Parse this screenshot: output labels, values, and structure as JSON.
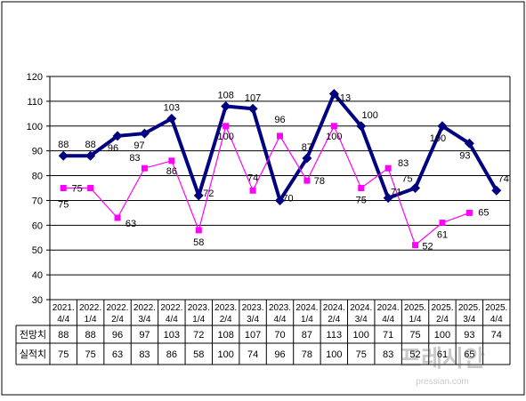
{
  "chart_data": {
    "type": "line",
    "title": "",
    "xlabel": "",
    "ylabel": "",
    "ylim": [
      30,
      120
    ],
    "yticks": [
      30,
      40,
      50,
      60,
      70,
      80,
      90,
      100,
      110,
      120
    ],
    "grid": true,
    "categories": [
      [
        "2021.",
        "4/4"
      ],
      [
        "2022.",
        "1/4"
      ],
      [
        "2022.",
        "2/4"
      ],
      [
        "2022.",
        "3/4"
      ],
      [
        "2022.",
        "4/4"
      ],
      [
        "2023.",
        "1/4"
      ],
      [
        "2023.",
        "2/4"
      ],
      [
        "2023.",
        "3/4"
      ],
      [
        "2023.",
        "4/4"
      ],
      [
        "2024.",
        "1/4"
      ],
      [
        "2024.",
        "2/4"
      ],
      [
        "2024.",
        "3/4"
      ],
      [
        "2024.",
        "4/4"
      ],
      [
        "2025.",
        "1/4"
      ],
      [
        "2025.",
        "2/4"
      ],
      [
        "2025.",
        "3/4"
      ],
      [
        "2025.",
        "4/4"
      ]
    ],
    "series": [
      {
        "name": "전망치",
        "color": "#000080",
        "marker": "diamond",
        "values": [
          88,
          88,
          96,
          97,
          103,
          72,
          108,
          107,
          70,
          87,
          113,
          100,
          71,
          75,
          100,
          93,
          74
        ],
        "labels": [
          "88",
          "88",
          "96",
          "97",
          "103",
          "72",
          "108",
          "107",
          "70",
          "87",
          "113",
          "100",
          "71",
          "75",
          "100",
          "93",
          "74"
        ]
      },
      {
        "name": "실적치",
        "color": "#ff00ff",
        "marker": "square",
        "values": [
          75,
          75,
          63,
          83,
          86,
          58,
          100,
          74,
          96,
          78,
          100,
          75,
          83,
          52,
          61,
          65,
          null
        ],
        "labels": [
          "75",
          "75",
          "63",
          "83",
          "86",
          "58",
          "100",
          "74",
          "96",
          "78",
          "100",
          "75",
          "83",
          "52",
          "61",
          "65",
          ""
        ]
      }
    ]
  },
  "watermark": {
    "text": "프레시안",
    "url": "pressian.com"
  }
}
